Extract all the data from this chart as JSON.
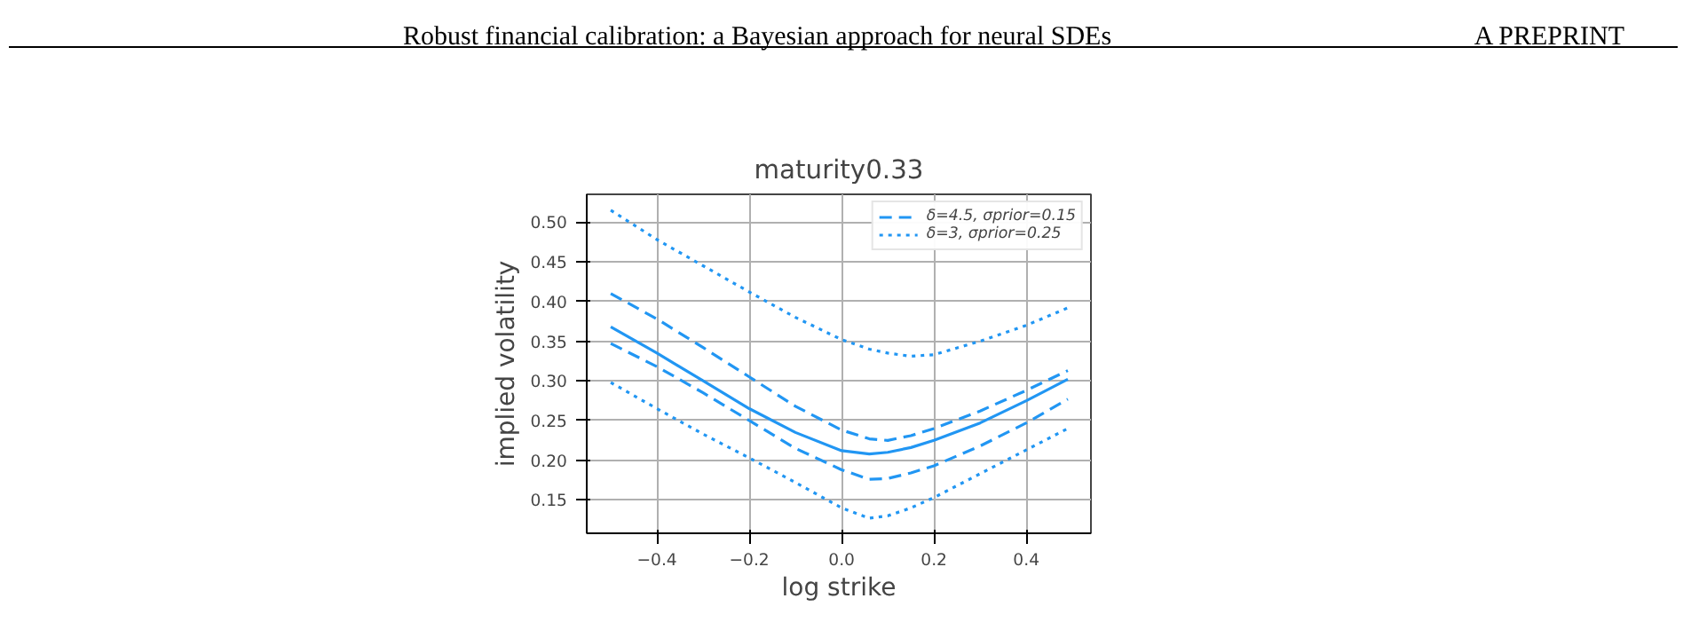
{
  "chart_data": {
    "type": "line",
    "title": "maturity0.33",
    "xlabel": "log strike",
    "ylabel": "implied volatility",
    "annotations": [
      "Robust financial calibration: a Bayesian approach for neural SDEs",
      "A PREPRINT"
    ],
    "x": [
      -0.5,
      -0.4,
      -0.3,
      -0.2,
      -0.1,
      0.0,
      0.06,
      0.1,
      0.15,
      0.2,
      0.3,
      0.4,
      0.49
    ],
    "series": [
      {
        "color": "#2196f3",
        "line_style": "solid",
        "values": [
          0.368,
          0.335,
          0.3,
          0.265,
          0.235,
          0.212,
          0.208,
          0.21,
          0.216,
          0.225,
          0.247,
          0.275,
          0.302
        ]
      },
      {
        "name": "δ=4.5, σprior=0.15",
        "color": "#2196f3",
        "line_style": "dashed",
        "values": [
          0.41,
          0.378,
          0.342,
          0.305,
          0.268,
          0.238,
          0.227,
          0.225,
          0.231,
          0.24,
          0.262,
          0.288,
          0.313
        ]
      },
      {
        "color": "#2196f3",
        "line_style": "dashed",
        "values": [
          0.347,
          0.318,
          0.285,
          0.25,
          0.215,
          0.188,
          0.176,
          0.177,
          0.184,
          0.193,
          0.218,
          0.247,
          0.277
        ]
      },
      {
        "name": "δ=3, σprior=0.25",
        "color": "#2196f3",
        "line_style": "dotted",
        "values": [
          0.515,
          0.478,
          0.445,
          0.412,
          0.38,
          0.352,
          0.34,
          0.335,
          0.331,
          0.333,
          0.35,
          0.37,
          0.392
        ]
      },
      {
        "color": "#2196f3",
        "line_style": "dotted",
        "values": [
          0.298,
          0.265,
          0.233,
          0.203,
          0.172,
          0.14,
          0.127,
          0.13,
          0.14,
          0.153,
          0.183,
          0.213,
          0.24
        ]
      }
    ],
    "xlim": [
      -0.552,
      0.54
    ],
    "ylim": [
      0.108,
      0.535
    ],
    "xticks": [
      {
        "value": -0.4,
        "label": "−0.4"
      },
      {
        "value": -0.2,
        "label": "−0.2"
      },
      {
        "value": 0.0,
        "label": "0.0"
      },
      {
        "value": 0.2,
        "label": "0.2"
      },
      {
        "value": 0.4,
        "label": "0.4"
      }
    ],
    "yticks": [
      {
        "value": 0.15,
        "label": "0.15"
      },
      {
        "value": 0.2,
        "label": "0.20"
      },
      {
        "value": 0.25,
        "label": "0.25"
      },
      {
        "value": 0.3,
        "label": "0.30"
      },
      {
        "value": 0.35,
        "label": "0.35"
      },
      {
        "value": 0.4,
        "label": "0.40"
      },
      {
        "value": 0.45,
        "label": "0.45"
      },
      {
        "value": 0.5,
        "label": "0.50"
      }
    ],
    "grid": true,
    "legend": "top right"
  }
}
